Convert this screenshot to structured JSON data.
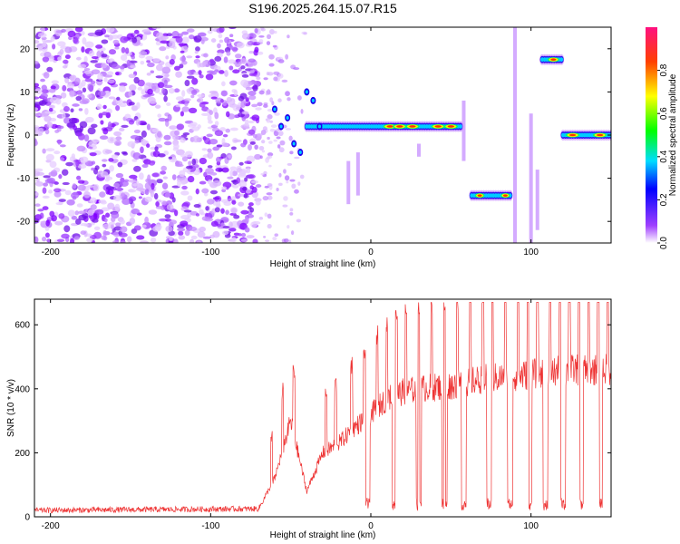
{
  "chart_data": [
    {
      "type": "heatmap",
      "title": "S196.2025.264.15.07.R15",
      "xlabel": "Height of straight line (km)",
      "ylabel": "Frequency (Hz)",
      "xlim": [
        -210,
        150
      ],
      "ylim": [
        -25,
        25
      ],
      "xticks": [
        -200,
        -100,
        0,
        100
      ],
      "yticks": [
        -20,
        -10,
        0,
        10,
        20
      ],
      "colorbar": {
        "label": "Normalized spectral amplitude",
        "range": [
          0,
          1
        ],
        "ticks": [
          0.0,
          0.2,
          0.4,
          0.6,
          0.8
        ]
      },
      "features": [
        {
          "name": "broadband noise",
          "x_range": [
            -210,
            -70
          ],
          "y_range": [
            -25,
            25
          ]
        },
        {
          "name": "transition noise",
          "x_range": [
            -70,
            -40
          ],
          "y_range": [
            -25,
            25
          ]
        },
        {
          "name": "main tone",
          "x_range": [
            -40,
            57
          ],
          "frequency": 2
        },
        {
          "name": "tone segment",
          "x_range": [
            63,
            87
          ],
          "frequency": -14
        },
        {
          "name": "tone segment",
          "x_range": [
            107,
            120
          ],
          "frequency": 17.5
        },
        {
          "name": "tone segment",
          "x_range": [
            120,
            150
          ],
          "frequency": 0
        }
      ]
    },
    {
      "type": "line",
      "xlabel": "Height of straight line (km)",
      "ylabel": "SNR (10 * v/v)",
      "xlim": [
        -210,
        150
      ],
      "ylim": [
        0,
        680
      ],
      "xticks": [
        -200,
        -100,
        0,
        100
      ],
      "yticks": [
        0,
        200,
        400,
        600
      ],
      "color": "#ee3333",
      "envelope": [
        {
          "x": -210,
          "y": 20
        },
        {
          "x": -70,
          "y": 25
        },
        {
          "x": -60,
          "y": 120
        },
        {
          "x": -50,
          "y": 300
        },
        {
          "x": -40,
          "y": 80
        },
        {
          "x": -30,
          "y": 200
        },
        {
          "x": -20,
          "y": 230
        },
        {
          "x": -10,
          "y": 280
        },
        {
          "x": 0,
          "y": 320
        },
        {
          "x": 10,
          "y": 370
        },
        {
          "x": 20,
          "y": 390
        },
        {
          "x": 30,
          "y": 400
        },
        {
          "x": 50,
          "y": 410
        },
        {
          "x": 70,
          "y": 430
        },
        {
          "x": 90,
          "y": 440
        },
        {
          "x": 110,
          "y": 450
        },
        {
          "x": 130,
          "y": 460
        },
        {
          "x": 150,
          "y": 460
        }
      ],
      "spike_peaks": [
        -62,
        -55,
        -48,
        -28,
        -22,
        -12,
        -4,
        4,
        10,
        16,
        22,
        30,
        38,
        46,
        54,
        62,
        70,
        76,
        84,
        92,
        98,
        104,
        112,
        118,
        124,
        130,
        136,
        142,
        148
      ],
      "dropouts": [
        -2,
        15,
        30,
        46,
        58,
        74,
        87,
        99,
        109,
        120,
        131,
        143
      ]
    }
  ]
}
